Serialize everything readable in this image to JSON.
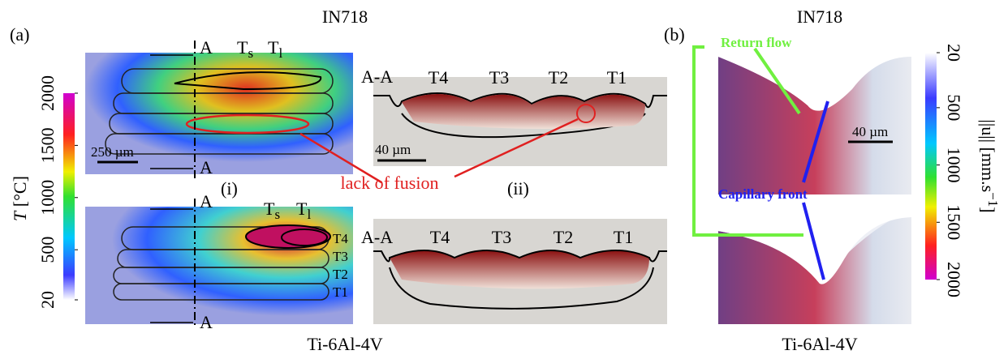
{
  "panel_a": {
    "label": "(a)",
    "top_title": "IN718",
    "bottom_title": "Ti-6Al-4V",
    "colorbar": {
      "symbol": "T",
      "unit": "[°C]",
      "ticks": [
        2000,
        1500,
        1000,
        500,
        20
      ]
    },
    "top": {
      "section_top": "A",
      "section_bottom": "A",
      "Ts": {
        "main": "T",
        "sub": "s"
      },
      "Tl": {
        "main": "T",
        "sub": "l"
      },
      "scale": "250 µm",
      "cross_section": "A-A",
      "tracks": [
        "T4",
        "T3",
        "T2",
        "T1"
      ],
      "cs_scale": "40 µm"
    },
    "bottom": {
      "section_top": "A",
      "section_bottom": "A",
      "Ts": {
        "main": "T",
        "sub": "s"
      },
      "Tl": {
        "main": "T",
        "sub": "l"
      },
      "layer_labels": [
        "T4",
        "T3",
        "T2",
        "T1"
      ],
      "cross_section": "A-A",
      "tracks": [
        "T4",
        "T3",
        "T2",
        "T1"
      ]
    },
    "annotation": "lack of fusion",
    "sub_i": "(i)",
    "sub_ii": "(ii)"
  },
  "panel_b": {
    "label": "(b)",
    "top_title": "IN718",
    "bottom_title": "Ti-6Al-4V",
    "return_flow": "Return flow",
    "capillary_front": "Capillary front",
    "scale": "40 µm",
    "colorbar": {
      "label_main": "||u|| [mm.s",
      "label_sup": "−1",
      "label_end": "]",
      "ticks": [
        20,
        500,
        1000,
        1500,
        2000
      ]
    }
  }
}
